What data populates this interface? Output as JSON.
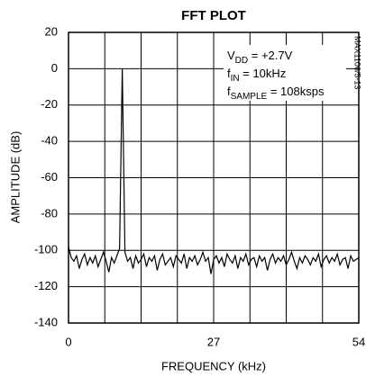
{
  "chart_data": {
    "type": "line",
    "title": "FFT PLOT",
    "xlabel": "FREQUENCY (kHz)",
    "ylabel": "AMPLITUDE (dB)",
    "figure_id": "MAX1106/5-13",
    "annotations": [
      {
        "base": "V",
        "sub": "DD",
        "rest": " = +2.7V"
      },
      {
        "base": "f",
        "sub": "IN",
        "rest": " = 10kHz"
      },
      {
        "base": "f",
        "sub": "SAMPLE",
        "rest": " = 108ksps"
      }
    ],
    "xlim": [
      0,
      54
    ],
    "xticks": [
      0,
      27,
      54
    ],
    "xgrid": [
      6.75,
      13.5,
      20.25,
      27,
      33.75,
      40.5,
      47.25
    ],
    "ylim": [
      -140,
      20
    ],
    "yticks": [
      20,
      0,
      -20,
      -40,
      -60,
      -80,
      -100,
      -120,
      -140
    ],
    "grid": true,
    "color": "#000000",
    "x": [
      0,
      0.5,
      1,
      1.5,
      2,
      2.5,
      3,
      3.5,
      4,
      4.5,
      5,
      5.5,
      6,
      6.5,
      7,
      7.5,
      8,
      8.5,
      9,
      9.5,
      10,
      10.5,
      11,
      11.5,
      12,
      12.5,
      13,
      13.5,
      14,
      14.5,
      15,
      15.5,
      16,
      16.5,
      17,
      17.5,
      18,
      18.5,
      19,
      19.5,
      20,
      20.5,
      21,
      21.5,
      22,
      22.5,
      23,
      23.5,
      24,
      24.5,
      25,
      25.5,
      26,
      26.5,
      27,
      27.5,
      28,
      28.5,
      29,
      29.5,
      30,
      30.5,
      31,
      31.5,
      32,
      32.5,
      33,
      33.5,
      34,
      34.5,
      35,
      35.5,
      36,
      36.5,
      37,
      37.5,
      38,
      38.5,
      39,
      39.5,
      40,
      40.5,
      41,
      41.5,
      42,
      42.5,
      43,
      43.5,
      44,
      44.5,
      45,
      45.5,
      46,
      46.5,
      47,
      47.5,
      48,
      48.5,
      49,
      49.5,
      50,
      50.5,
      51,
      51.5,
      52,
      52.5,
      53,
      53.5,
      54
    ],
    "values": [
      -98,
      -104,
      -106,
      -103,
      -110,
      -105,
      -102,
      -108,
      -104,
      -107,
      -103,
      -109,
      -105,
      -101,
      -106,
      -112,
      -104,
      -107,
      -103,
      -99,
      0,
      -101,
      -106,
      -104,
      -110,
      -103,
      -107,
      -105,
      -102,
      -109,
      -104,
      -106,
      -103,
      -111,
      -105,
      -102,
      -108,
      -106,
      -104,
      -109,
      -103,
      -105,
      -107,
      -102,
      -110,
      -104,
      -106,
      -103,
      -108,
      -105,
      -101,
      -106,
      -104,
      -113,
      -105,
      -103,
      -107,
      -104,
      -109,
      -102,
      -105,
      -107,
      -103,
      -110,
      -104,
      -106,
      -102,
      -108,
      -105,
      -104,
      -109,
      -103,
      -106,
      -104,
      -111,
      -105,
      -102,
      -107,
      -104,
      -106,
      -103,
      -108,
      -105,
      -101,
      -106,
      -110,
      -104,
      -107,
      -103,
      -105,
      -108,
      -104,
      -106,
      -102,
      -109,
      -105,
      -103,
      -107,
      -104,
      -106,
      -102,
      -108,
      -105,
      -104,
      -110,
      -103,
      -106,
      -105,
      -104
    ]
  }
}
